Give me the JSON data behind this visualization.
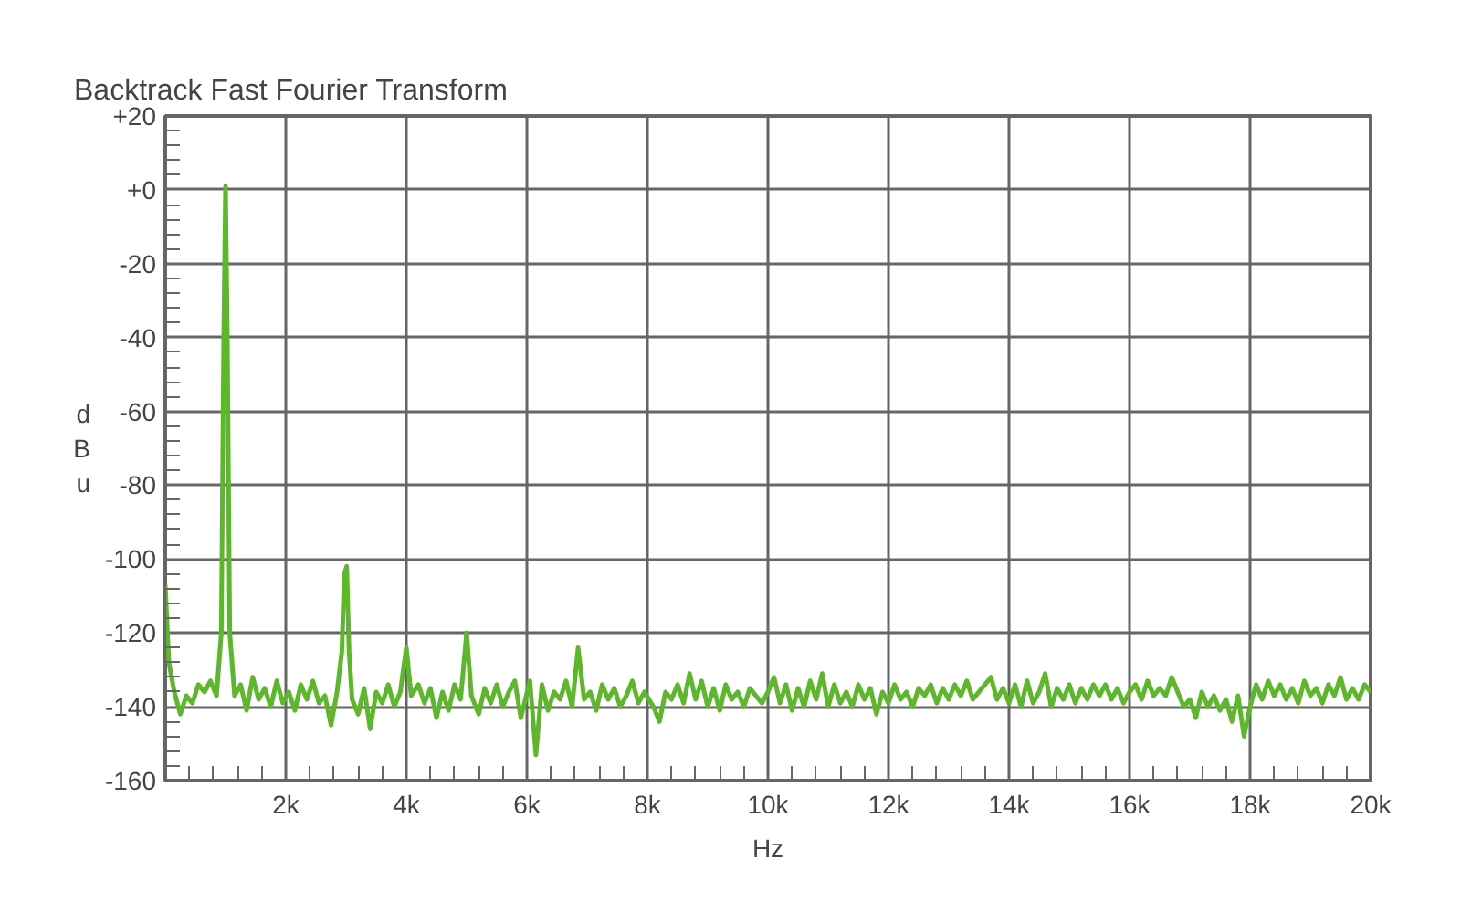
{
  "chart_data": {
    "type": "line",
    "title": "Backtrack Fast Fourier Transform",
    "xlabel": "Hz",
    "ylabel": "dBu",
    "xlim": [
      0,
      20000
    ],
    "ylim": [
      -160,
      20
    ],
    "xticks": [
      {
        "value": 0,
        "label": null
      },
      {
        "value": 2000,
        "label": "2k"
      },
      {
        "value": 4000,
        "label": "4k"
      },
      {
        "value": 6000,
        "label": "6k"
      },
      {
        "value": 8000,
        "label": "8k"
      },
      {
        "value": 10000,
        "label": "10k"
      },
      {
        "value": 12000,
        "label": "12k"
      },
      {
        "value": 14000,
        "label": "14k"
      },
      {
        "value": 16000,
        "label": "16k"
      },
      {
        "value": 18000,
        "label": "18k"
      },
      {
        "value": 20000,
        "label": "20k"
      }
    ],
    "yticks": [
      {
        "value": 20,
        "label": "+20"
      },
      {
        "value": 0,
        "label": "+0"
      },
      -20,
      -40,
      -60,
      -80,
      -100,
      -120,
      -140,
      -160
    ],
    "grid": true,
    "marker": "none",
    "line_style": "solid",
    "series": [
      {
        "color": "#5cb82a",
        "x": [
          0,
          60,
          150,
          250,
          350,
          450,
          550,
          650,
          750,
          850,
          930,
          970,
          1000,
          1030,
          1070,
          1150,
          1250,
          1350,
          1450,
          1550,
          1650,
          1750,
          1850,
          1950,
          2050,
          2150,
          2250,
          2350,
          2450,
          2550,
          2650,
          2750,
          2850,
          2930,
          2970,
          3010,
          3050,
          3100,
          3200,
          3300,
          3400,
          3500,
          3600,
          3700,
          3800,
          3900,
          4000,
          4080,
          4200,
          4300,
          4400,
          4500,
          4600,
          4700,
          4800,
          4900,
          5000,
          5080,
          5200,
          5300,
          5400,
          5500,
          5600,
          5700,
          5800,
          5900,
          6050,
          6150,
          6250,
          6350,
          6450,
          6550,
          6650,
          6750,
          6850,
          6950,
          7050,
          7150,
          7250,
          7350,
          7450,
          7550,
          7650,
          7750,
          7850,
          7950,
          8100,
          8200,
          8300,
          8400,
          8500,
          8600,
          8700,
          8800,
          8900,
          9000,
          9100,
          9200,
          9300,
          9400,
          9500,
          9600,
          9700,
          9800,
          9900,
          10000,
          10100,
          10200,
          10300,
          10400,
          10500,
          10600,
          10700,
          10800,
          10900,
          11000,
          11100,
          11200,
          11300,
          11400,
          11500,
          11600,
          11700,
          11800,
          11900,
          12000,
          12100,
          12200,
          12300,
          12400,
          12500,
          12600,
          12700,
          12800,
          12900,
          13000,
          13100,
          13200,
          13300,
          13400,
          13500,
          13700,
          13800,
          13900,
          14000,
          14100,
          14200,
          14300,
          14400,
          14500,
          14600,
          14700,
          14800,
          14900,
          15000,
          15100,
          15200,
          15300,
          15400,
          15500,
          15600,
          15700,
          15800,
          15900,
          16000,
          16100,
          16200,
          16300,
          16400,
          16500,
          16600,
          16700,
          16800,
          16900,
          17000,
          17100,
          17200,
          17300,
          17400,
          17500,
          17600,
          17700,
          17800,
          17900,
          18000,
          18100,
          18200,
          18300,
          18400,
          18500,
          18600,
          18700,
          18800,
          18900,
          19000,
          19100,
          19200,
          19300,
          19400,
          19500,
          19600,
          19700,
          19800,
          19900,
          20000
        ],
        "values": [
          -107,
          -128,
          -136,
          -142,
          -137,
          -139,
          -134,
          -136,
          -133,
          -137,
          -120,
          -40,
          1,
          -40,
          -120,
          -137,
          -134,
          -141,
          -132,
          -138,
          -135,
          -140,
          -133,
          -139,
          -136,
          -141,
          -134,
          -138,
          -133,
          -139,
          -137,
          -145,
          -136,
          -125,
          -104,
          -102,
          -125,
          -138,
          -142,
          -135,
          -146,
          -136,
          -139,
          -134,
          -140,
          -136,
          -124,
          -137,
          -134,
          -139,
          -135,
          -143,
          -136,
          -141,
          -134,
          -138,
          -120,
          -137,
          -142,
          -135,
          -139,
          -134,
          -140,
          -136,
          -133,
          -143,
          -133,
          -153,
          -134,
          -141,
          -136,
          -138,
          -133,
          -140,
          -124,
          -138,
          -136,
          -141,
          -134,
          -138,
          -135,
          -140,
          -137,
          -133,
          -139,
          -136,
          -140,
          -144,
          -136,
          -138,
          -134,
          -139,
          -131,
          -138,
          -133,
          -140,
          -135,
          -141,
          -134,
          -138,
          -136,
          -140,
          -135,
          -137,
          -139,
          -136,
          -132,
          -139,
          -134,
          -141,
          -135,
          -140,
          -133,
          -138,
          -131,
          -140,
          -134,
          -139,
          -136,
          -140,
          -134,
          -138,
          -135,
          -142,
          -136,
          -139,
          -134,
          -138,
          -136,
          -140,
          -135,
          -137,
          -134,
          -139,
          -135,
          -138,
          -134,
          -137,
          -133,
          -138,
          -136,
          -132,
          -138,
          -135,
          -139,
          -134,
          -140,
          -133,
          -139,
          -136,
          -131,
          -140,
          -135,
          -138,
          -134,
          -139,
          -135,
          -138,
          -134,
          -137,
          -134,
          -138,
          -135,
          -139,
          -136,
          -134,
          -138,
          -133,
          -137,
          -135,
          -137,
          -132,
          -136,
          -140,
          -138,
          -143,
          -136,
          -140,
          -137,
          -141,
          -138,
          -144,
          -137,
          -148,
          -140,
          -134,
          -138,
          -133,
          -137,
          -134,
          -138,
          -135,
          -139,
          -133,
          -137,
          -135,
          -139,
          -134,
          -137,
          -132,
          -138,
          -135,
          -138,
          -134,
          -136
        ]
      }
    ]
  }
}
